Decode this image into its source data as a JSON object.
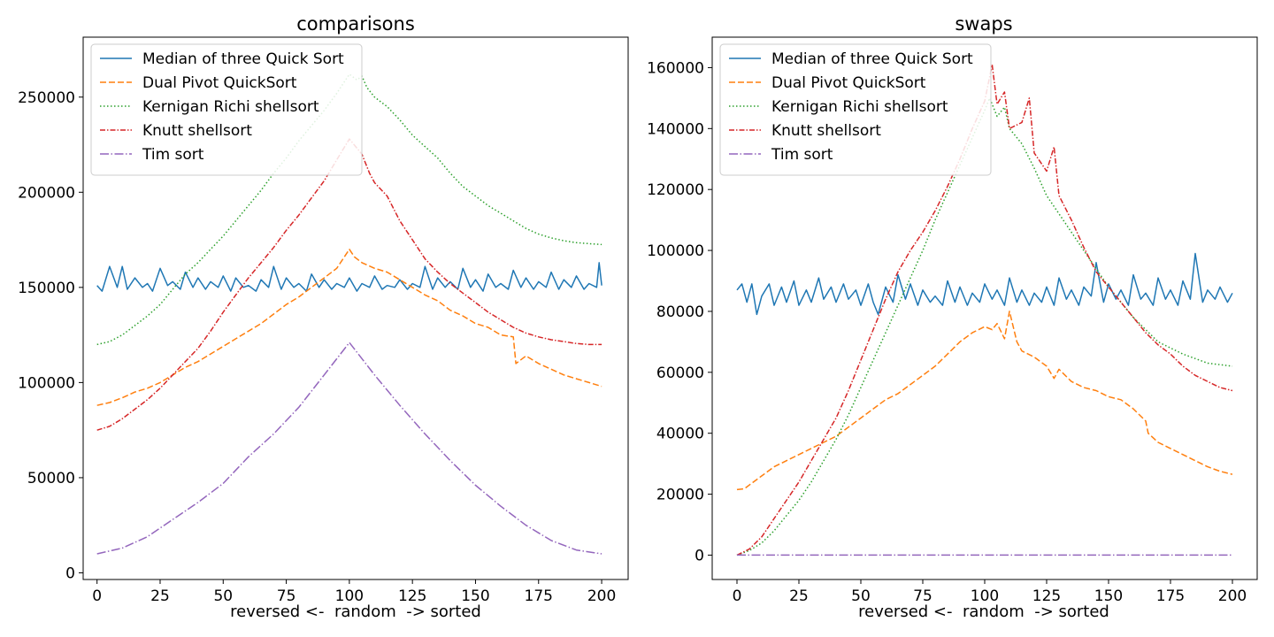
{
  "chart_data": [
    {
      "type": "line",
      "title": "comparisons",
      "xlabel": "reversed <-  random  -> sorted",
      "ylabel": "",
      "xlim": [
        -5.5,
        210.5
      ],
      "ylim": [
        -3500,
        281500
      ],
      "xticks": [
        0,
        25,
        50,
        75,
        100,
        125,
        150,
        175,
        200
      ],
      "xtick_labels": [
        "0",
        "25",
        "50",
        "75",
        "100",
        "125",
        "150",
        "175",
        "200"
      ],
      "yticks": [
        0,
        50000,
        100000,
        150000,
        200000,
        250000
      ],
      "ytick_labels": [
        "0",
        "50000",
        "100000",
        "150000",
        "200000",
        "250000"
      ],
      "grid": false,
      "legend_position": "upper-left",
      "series": [
        {
          "name": "Median of three Quick Sort",
          "color": "#1f77b4",
          "dash": "solid",
          "x": [
            0,
            2,
            5,
            8,
            10,
            12,
            15,
            18,
            20,
            22,
            25,
            28,
            30,
            33,
            35,
            38,
            40,
            43,
            45,
            48,
            50,
            53,
            55,
            58,
            60,
            63,
            65,
            68,
            70,
            73,
            75,
            78,
            80,
            83,
            85,
            88,
            90,
            93,
            95,
            98,
            100,
            103,
            105,
            108,
            110,
            113,
            115,
            118,
            120,
            123,
            125,
            128,
            130,
            133,
            135,
            138,
            140,
            143,
            145,
            148,
            150,
            153,
            155,
            158,
            160,
            163,
            165,
            168,
            170,
            173,
            175,
            178,
            180,
            183,
            185,
            188,
            190,
            193,
            195,
            198,
            199,
            200
          ],
          "y": [
            151000,
            148000,
            161000,
            150000,
            161000,
            149000,
            155000,
            150000,
            152000,
            148000,
            160000,
            151000,
            153000,
            149000,
            158000,
            150000,
            155000,
            149000,
            153000,
            150000,
            156000,
            148000,
            155000,
            150000,
            151000,
            148000,
            154000,
            150000,
            161000,
            149000,
            155000,
            150000,
            152000,
            148000,
            157000,
            150000,
            154000,
            149000,
            152000,
            150000,
            155000,
            148000,
            152000,
            150000,
            156000,
            149000,
            151000,
            150000,
            154000,
            149000,
            152000,
            150000,
            161000,
            149000,
            155000,
            150000,
            153000,
            149000,
            160000,
            150000,
            154000,
            148000,
            157000,
            150000,
            152000,
            149000,
            159000,
            150000,
            155000,
            149000,
            153000,
            150000,
            158000,
            149000,
            154000,
            150000,
            156000,
            149000,
            152000,
            150000,
            163000,
            151000
          ]
        },
        {
          "name": "Dual Pivot QuickSort",
          "color": "#ff7f0e",
          "dash": "dashed",
          "x": [
            0,
            5,
            10,
            15,
            20,
            25,
            30,
            35,
            40,
            45,
            50,
            55,
            60,
            65,
            70,
            75,
            80,
            85,
            90,
            95,
            100,
            102,
            105,
            110,
            115,
            120,
            125,
            130,
            135,
            140,
            145,
            150,
            155,
            160,
            165,
            166,
            170,
            175,
            180,
            185,
            190,
            195,
            200
          ],
          "y": [
            88000,
            89500,
            92000,
            95000,
            97000,
            100000,
            104000,
            108000,
            111000,
            115000,
            119000,
            123000,
            127000,
            131000,
            136000,
            141000,
            145000,
            150000,
            155000,
            160000,
            170000,
            166000,
            163000,
            160000,
            158000,
            154000,
            150000,
            146000,
            143000,
            138000,
            135000,
            131000,
            129000,
            125000,
            124000,
            110000,
            114000,
            110000,
            107000,
            104000,
            102000,
            100000,
            98000
          ]
        },
        {
          "name": "Kernigan Richi shellsort",
          "color": "#2ca02c",
          "dash": "dotted",
          "x": [
            0,
            5,
            10,
            15,
            20,
            25,
            30,
            35,
            40,
            45,
            50,
            55,
            60,
            65,
            70,
            75,
            80,
            85,
            90,
            95,
            100,
            103,
            105,
            107,
            110,
            115,
            120,
            125,
            130,
            135,
            140,
            145,
            150,
            155,
            160,
            165,
            170,
            175,
            180,
            185,
            190,
            195,
            200
          ],
          "y": [
            120000,
            121500,
            125000,
            130000,
            135000,
            141000,
            149000,
            157000,
            163000,
            170000,
            177000,
            185000,
            193000,
            201000,
            210000,
            218000,
            227000,
            235000,
            243000,
            252000,
            262000,
            259000,
            261000,
            255000,
            250000,
            245000,
            238000,
            230000,
            224000,
            218000,
            210000,
            203000,
            198000,
            193000,
            189000,
            185000,
            181000,
            178000,
            176000,
            174500,
            173500,
            173000,
            172500
          ]
        },
        {
          "name": "Knutt shellsort",
          "color": "#d62728",
          "dash": "dashdot",
          "x": [
            0,
            5,
            10,
            15,
            20,
            25,
            30,
            35,
            40,
            45,
            50,
            55,
            60,
            65,
            70,
            75,
            80,
            85,
            90,
            95,
            100,
            105,
            108,
            110,
            115,
            120,
            125,
            130,
            135,
            140,
            145,
            150,
            155,
            160,
            165,
            170,
            175,
            180,
            185,
            190,
            195,
            200
          ],
          "y": [
            75000,
            77000,
            81000,
            86000,
            91000,
            97000,
            104000,
            111000,
            118000,
            127000,
            137000,
            146000,
            155000,
            163000,
            171000,
            180000,
            188000,
            197000,
            206000,
            217000,
            228000,
            220000,
            210000,
            205000,
            198000,
            185000,
            175000,
            165000,
            158000,
            152000,
            147000,
            142000,
            137000,
            133000,
            129000,
            126000,
            124000,
            122500,
            121500,
            120500,
            120000,
            120000
          ]
        },
        {
          "name": "Tim sort",
          "color": "#9467bd",
          "dash": "longdashdot",
          "x": [
            0,
            10,
            20,
            30,
            40,
            50,
            60,
            70,
            80,
            90,
            100,
            110,
            120,
            130,
            140,
            150,
            160,
            170,
            180,
            190,
            200
          ],
          "y": [
            10000,
            13000,
            19000,
            28000,
            37000,
            47000,
            61000,
            73000,
            87000,
            104000,
            121000,
            104000,
            88000,
            73000,
            59000,
            46000,
            35000,
            25000,
            17000,
            12000,
            10000
          ]
        }
      ]
    },
    {
      "type": "line",
      "title": "swaps",
      "xlabel": "reversed <-  random  -> sorted",
      "ylabel": "",
      "xlim": [
        -10,
        210
      ],
      "ylim": [
        -8000,
        170000
      ],
      "xticks": [
        0,
        25,
        50,
        75,
        100,
        125,
        150,
        175,
        200
      ],
      "xtick_labels": [
        "0",
        "25",
        "50",
        "75",
        "100",
        "125",
        "150",
        "175",
        "200"
      ],
      "yticks": [
        0,
        20000,
        40000,
        60000,
        80000,
        100000,
        120000,
        140000,
        160000
      ],
      "ytick_labels": [
        "0",
        "20000",
        "40000",
        "60000",
        "80000",
        "100000",
        "120000",
        "140000",
        "160000"
      ],
      "grid": false,
      "legend_position": "upper-left",
      "series": [
        {
          "name": "Median of three Quick Sort",
          "color": "#1f77b4",
          "dash": "solid",
          "x": [
            0,
            2,
            4,
            6,
            8,
            10,
            13,
            15,
            18,
            20,
            23,
            25,
            28,
            30,
            33,
            35,
            38,
            40,
            43,
            45,
            48,
            50,
            53,
            55,
            57,
            60,
            63,
            65,
            68,
            70,
            73,
            75,
            78,
            80,
            83,
            85,
            88,
            90,
            93,
            95,
            98,
            100,
            103,
            105,
            108,
            110,
            113,
            115,
            118,
            120,
            123,
            125,
            128,
            130,
            133,
            135,
            138,
            140,
            143,
            145,
            148,
            150,
            153,
            155,
            158,
            160,
            163,
            165,
            168,
            170,
            173,
            175,
            178,
            180,
            183,
            185,
            188,
            190,
            193,
            195,
            198,
            200
          ],
          "y": [
            87000,
            89000,
            83000,
            89000,
            79000,
            85000,
            89000,
            82000,
            88000,
            83000,
            90000,
            82000,
            87000,
            83000,
            91000,
            84000,
            88000,
            83000,
            89000,
            84000,
            87000,
            82000,
            89000,
            83000,
            79000,
            88000,
            83000,
            92000,
            84000,
            89000,
            82000,
            87000,
            83000,
            85000,
            82000,
            90000,
            83000,
            88000,
            82000,
            86000,
            83000,
            89000,
            84000,
            87000,
            82000,
            91000,
            83000,
            87000,
            82000,
            86000,
            83000,
            88000,
            82000,
            91000,
            84000,
            87000,
            82000,
            88000,
            85000,
            96000,
            83000,
            89000,
            84000,
            87000,
            82000,
            92000,
            84000,
            86000,
            82000,
            91000,
            84000,
            87000,
            82000,
            90000,
            84000,
            99000,
            83000,
            87000,
            84000,
            88000,
            83000,
            86000
          ]
        },
        {
          "name": "Dual Pivot QuickSort",
          "color": "#ff7f0e",
          "dash": "dashed",
          "x": [
            0,
            3,
            5,
            10,
            15,
            20,
            25,
            30,
            35,
            40,
            45,
            50,
            55,
            60,
            65,
            70,
            75,
            80,
            85,
            90,
            95,
            100,
            103,
            105,
            108,
            110,
            113,
            115,
            120,
            125,
            128,
            130,
            135,
            140,
            145,
            150,
            155,
            160,
            165,
            166,
            170,
            175,
            180,
            185,
            190,
            195,
            200
          ],
          "y": [
            21500,
            21800,
            23000,
            26000,
            29000,
            31000,
            33000,
            35000,
            37000,
            39000,
            42000,
            45000,
            48000,
            51000,
            53000,
            56000,
            59000,
            62000,
            66000,
            70000,
            73000,
            75000,
            74000,
            76000,
            71000,
            80000,
            70000,
            67000,
            65000,
            62000,
            58000,
            61000,
            57000,
            55000,
            54000,
            52000,
            51000,
            48000,
            44000,
            40000,
            37000,
            35000,
            33000,
            31000,
            29000,
            27500,
            26500
          ]
        },
        {
          "name": "Kernigan Richi shellsort",
          "color": "#2ca02c",
          "dash": "dotted",
          "x": [
            0,
            5,
            10,
            15,
            20,
            25,
            30,
            35,
            40,
            45,
            50,
            55,
            60,
            65,
            70,
            75,
            80,
            85,
            90,
            95,
            100,
            102,
            105,
            108,
            110,
            115,
            120,
            125,
            130,
            135,
            140,
            145,
            150,
            155,
            160,
            165,
            170,
            175,
            180,
            185,
            190,
            195,
            200
          ],
          "y": [
            0,
            1500,
            4000,
            8000,
            13000,
            18000,
            24000,
            31000,
            38000,
            46000,
            55000,
            64000,
            73000,
            82000,
            91000,
            100000,
            110000,
            119000,
            128000,
            137000,
            146000,
            150000,
            144000,
            147000,
            140000,
            135000,
            127000,
            118000,
            112000,
            106000,
            100000,
            94000,
            88000,
            83000,
            78000,
            74000,
            70000,
            68000,
            66000,
            64500,
            63000,
            62500,
            62000
          ]
        },
        {
          "name": "Knutt shellsort",
          "color": "#d62728",
          "dash": "dashdot",
          "x": [
            0,
            5,
            10,
            15,
            20,
            25,
            30,
            35,
            40,
            45,
            50,
            55,
            60,
            65,
            70,
            75,
            80,
            85,
            90,
            95,
            100,
            103,
            105,
            108,
            110,
            115,
            118,
            120,
            125,
            128,
            130,
            135,
            140,
            145,
            150,
            155,
            160,
            165,
            170,
            175,
            180,
            185,
            190,
            195,
            200
          ],
          "y": [
            0,
            2000,
            6000,
            12000,
            18000,
            24000,
            31000,
            38000,
            45000,
            54000,
            64000,
            74000,
            84000,
            93000,
            100000,
            106000,
            113000,
            121000,
            130000,
            140000,
            149000,
            161000,
            148000,
            152000,
            140000,
            142000,
            150000,
            132000,
            126000,
            134000,
            118000,
            110000,
            101000,
            93000,
            88000,
            83000,
            78000,
            73000,
            69000,
            66000,
            62000,
            59000,
            57000,
            55000,
            54000
          ]
        },
        {
          "name": "Tim sort",
          "color": "#9467bd",
          "dash": "longdashdot",
          "x": [
            0,
            200
          ],
          "y": [
            0,
            0
          ]
        }
      ]
    }
  ]
}
